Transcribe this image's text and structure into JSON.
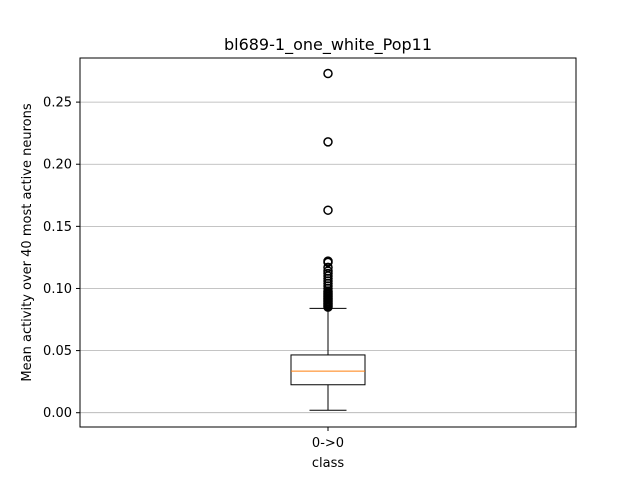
{
  "chart_data": {
    "type": "box",
    "title": "bl689-1_one_white_Pop11",
    "xlabel": "class",
    "ylabel": "Mean activity over 40 most active neurons",
    "categories": [
      "0->0"
    ],
    "ylim": [
      -0.0115,
      0.2855
    ],
    "yticks": [
      0.0,
      0.05,
      0.1,
      0.15,
      0.2,
      0.25
    ],
    "ytick_labels": [
      "0.00",
      "0.05",
      "0.10",
      "0.15",
      "0.20",
      "0.25"
    ],
    "grid": "y",
    "box": {
      "whisker_low": 0.002,
      "q1": 0.0225,
      "median": 0.0335,
      "q3": 0.0465,
      "whisker_high": 0.084
    },
    "outliers": [
      0.273,
      0.218,
      0.163,
      0.122,
      0.121,
      0.117,
      0.114,
      0.112,
      0.11,
      0.108,
      0.106,
      0.104,
      0.102,
      0.1,
      0.098,
      0.097,
      0.096,
      0.095,
      0.094,
      0.093,
      0.092,
      0.091,
      0.09,
      0.089,
      0.088,
      0.087,
      0.086,
      0.085
    ],
    "colors": {
      "box": "#000000",
      "median": "#ff7f0e",
      "grid": "#b0b0b0"
    }
  }
}
